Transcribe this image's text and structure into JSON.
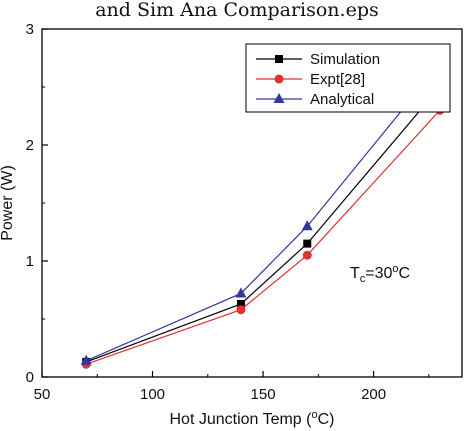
{
  "header": {
    "text": "and Sim Ana Comparison.eps"
  },
  "chart_data": {
    "type": "line",
    "x": [
      70,
      140,
      170,
      230
    ],
    "series": [
      {
        "name": "Simulation",
        "values": [
          0.13,
          0.63,
          1.15,
          2.5
        ],
        "color": "#000000",
        "marker": "square"
      },
      {
        "name": "Expt[28]",
        "values": [
          0.11,
          0.58,
          1.05,
          2.3
        ],
        "color": "#e03030",
        "marker": "circle"
      },
      {
        "name": "Analytical",
        "values": [
          0.14,
          0.72,
          1.3,
          2.7
        ],
        "color": "#3535a0",
        "marker": "triangle"
      }
    ],
    "xlim": [
      50,
      240
    ],
    "ylim": [
      0,
      3
    ],
    "x_ticks": [
      50,
      100,
      150,
      200
    ],
    "y_ticks": [
      0,
      1,
      2,
      3
    ],
    "xlabel": {
      "pre": "Hot Junction Temp (",
      "sup": "o",
      "post": "C)"
    },
    "ylabel": "Power (W)",
    "annotation": {
      "t": "T",
      "sub": "c",
      "eq": "=30",
      "sup": "o",
      "unit": "C"
    },
    "legend_position": "top-right",
    "grid": false
  }
}
